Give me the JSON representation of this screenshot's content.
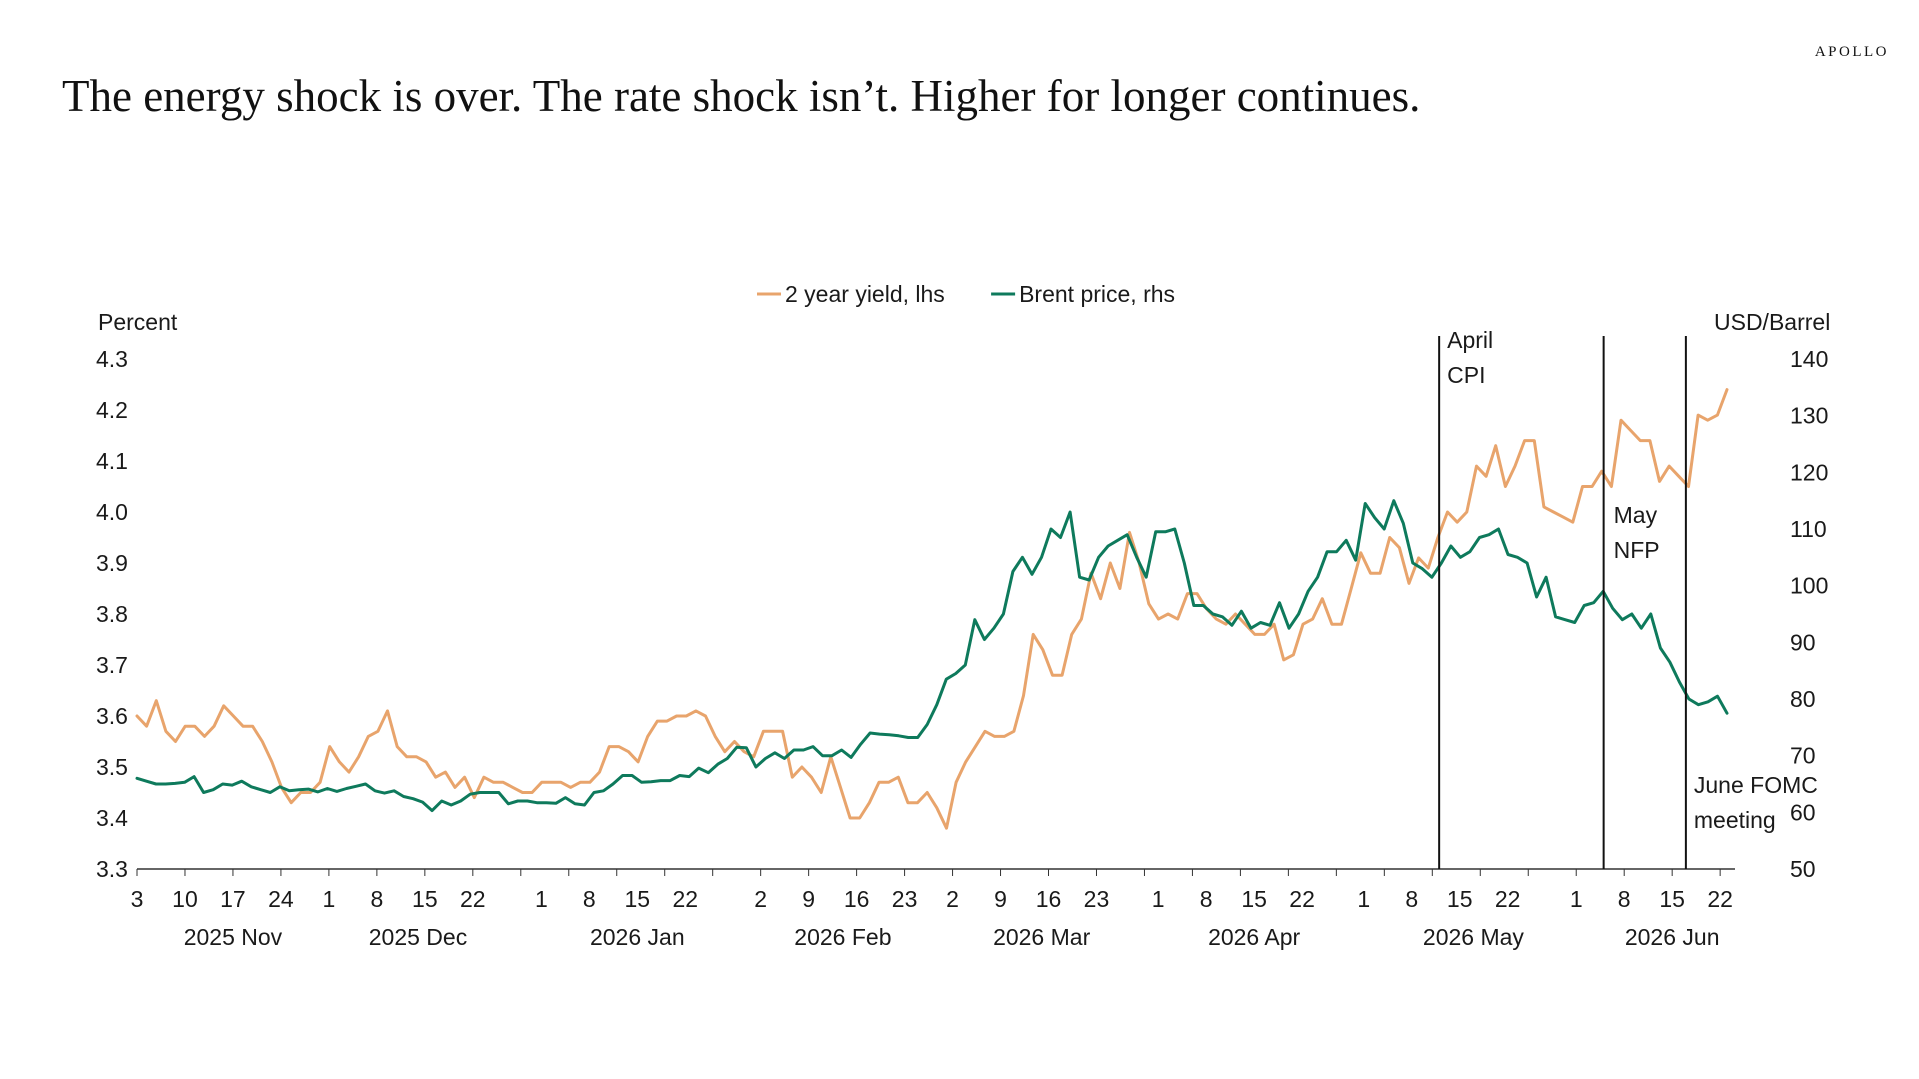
{
  "brand": "APOLLO",
  "title": "The energy shock is over. The rate shock isn’t. Higher for longer continues.",
  "chart_data": {
    "type": "line",
    "x_labels": {
      "days": [
        "3",
        "10",
        "17",
        "24",
        "1",
        "8",
        "15",
        "22",
        "1",
        "8",
        "15",
        "22",
        "2",
        "9",
        "16",
        "23",
        "2",
        "9",
        "16",
        "23",
        "1",
        "8",
        "15",
        "22",
        "1",
        "8",
        "15",
        "22",
        "1",
        "8",
        "15",
        "22"
      ],
      "months": [
        "2025 Nov",
        "2025 Dec",
        "2026 Jan",
        "2026 Feb",
        "2026 Mar",
        "2026 Apr",
        "2026 May",
        "2026 Jun"
      ]
    },
    "x_range": [
      "2025-11-03",
      "2026-06-23"
    ],
    "left_axis": {
      "label": "Percent",
      "ticks": [
        "3.3",
        "3.4",
        "3.5",
        "3.6",
        "3.7",
        "3.8",
        "3.9",
        "4.0",
        "4.1",
        "4.2",
        "4.3"
      ],
      "range": [
        3.3,
        4.3
      ]
    },
    "right_axis": {
      "label": "USD/Barrel",
      "ticks": [
        "50",
        "60",
        "70",
        "80",
        "90",
        "100",
        "110",
        "120",
        "130",
        "140"
      ],
      "range": [
        50,
        140
      ]
    },
    "legend": {
      "position": "top-center"
    },
    "series": [
      {
        "name": "2 year yield, lhs",
        "axis": "left",
        "color": "#E8A46C",
        "values": [
          3.6,
          3.58,
          3.63,
          3.57,
          3.55,
          3.58,
          3.58,
          3.56,
          3.58,
          3.62,
          3.6,
          3.58,
          3.58,
          3.55,
          3.51,
          3.46,
          3.43,
          3.45,
          3.45,
          3.47,
          3.54,
          3.51,
          3.49,
          3.52,
          3.56,
          3.57,
          3.61,
          3.54,
          3.52,
          3.52,
          3.51,
          3.48,
          3.49,
          3.46,
          3.48,
          3.44,
          3.48,
          3.47,
          3.47,
          3.46,
          3.45,
          3.45,
          3.47,
          3.47,
          3.47,
          3.46,
          3.47,
          3.47,
          3.49,
          3.54,
          3.54,
          3.53,
          3.51,
          3.56,
          3.59,
          3.59,
          3.6,
          3.6,
          3.61,
          3.6,
          3.56,
          3.53,
          3.55,
          3.53,
          3.52,
          3.57,
          3.57,
          3.57,
          3.48,
          3.5,
          3.48,
          3.45,
          3.52,
          3.46,
          3.4,
          3.4,
          3.43,
          3.47,
          3.47,
          3.48,
          3.43,
          3.43,
          3.45,
          3.42,
          3.38,
          3.47,
          3.51,
          3.54,
          3.57,
          3.56,
          3.56,
          3.57,
          3.64,
          3.76,
          3.73,
          3.68,
          3.68,
          3.76,
          3.79,
          3.88,
          3.83,
          3.9,
          3.85,
          3.96,
          3.9,
          3.82,
          3.79,
          3.8,
          3.79,
          3.84,
          3.84,
          3.81,
          3.79,
          3.78,
          3.8,
          3.78,
          3.76,
          3.76,
          3.78,
          3.71,
          3.72,
          3.78,
          3.79,
          3.83,
          3.78,
          3.78,
          3.85,
          3.92,
          3.88,
          3.88,
          3.95,
          3.93,
          3.86,
          3.91,
          3.89,
          3.95,
          4.0,
          3.98,
          4.0,
          4.09,
          4.07,
          4.13,
          4.05,
          4.09,
          4.14,
          4.14,
          4.01,
          4.0,
          3.99,
          3.98,
          4.05,
          4.05,
          4.08,
          4.05,
          4.18,
          4.16,
          4.14,
          4.14,
          4.06,
          4.09,
          4.07,
          4.05,
          4.19,
          4.18,
          4.19,
          4.24
        ]
      },
      {
        "name": "Brent price, rhs",
        "axis": "right",
        "color": "#0E7A5C",
        "values": [
          66.0,
          65.5,
          65.0,
          65.0,
          65.1,
          65.3,
          66.3,
          63.5,
          64.0,
          65.0,
          64.8,
          65.5,
          64.5,
          64.0,
          63.5,
          64.5,
          63.8,
          64.0,
          64.1,
          63.6,
          64.2,
          63.7,
          64.2,
          64.6,
          65.0,
          63.8,
          63.4,
          63.8,
          62.8,
          62.4,
          61.8,
          60.3,
          62.0,
          61.3,
          62.0,
          63.2,
          63.5,
          63.5,
          63.5,
          61.5,
          62.0,
          62.0,
          61.7,
          61.7,
          61.6,
          62.6,
          61.5,
          61.3,
          63.5,
          63.8,
          65.0,
          66.5,
          66.5,
          65.3,
          65.4,
          65.6,
          65.6,
          66.5,
          66.3,
          67.8,
          67.0,
          68.5,
          69.5,
          71.5,
          71.4,
          68.0,
          69.5,
          70.5,
          69.5,
          71.0,
          71.0,
          71.6,
          70.0,
          70.0,
          71.0,
          69.7,
          72.0,
          74.0,
          73.8,
          73.7,
          73.5,
          73.2,
          73.2,
          75.5,
          79.0,
          83.5,
          84.5,
          86.0,
          94.0,
          90.5,
          92.5,
          95.0,
          102.5,
          105.0,
          102.0,
          105.0,
          110.0,
          108.5,
          113.0,
          101.5,
          101.0,
          105.0,
          107.0,
          108.0,
          109.0,
          105.0,
          101.5,
          109.5,
          109.5,
          110.0,
          104.0,
          96.5,
          96.5,
          95.0,
          94.5,
          93.0,
          95.5,
          92.5,
          93.5,
          93.0,
          97.0,
          92.5,
          95.0,
          99.0,
          101.5,
          106.0,
          106.0,
          108.0,
          104.5,
          114.5,
          112.0,
          110.0,
          115.0,
          111.0,
          104.0,
          103.0,
          101.5,
          104.0,
          107.0,
          105.0,
          106.0,
          108.5,
          109.0,
          110.0,
          105.5,
          105.0,
          104.0,
          98.0,
          101.5,
          94.5,
          94.0,
          93.5,
          96.5,
          97.0,
          99.0,
          96.0,
          94.0,
          95.0,
          92.5,
          95.0,
          89.0,
          86.5,
          83.0,
          80.0,
          79.0,
          79.5,
          80.5,
          77.5
        ]
      }
    ],
    "annotations": [
      {
        "date": "2026-05-12",
        "text": [
          "April",
          "CPI"
        ]
      },
      {
        "date": "2026-06-05",
        "text": [
          "May",
          "NFP"
        ]
      },
      {
        "date": "2026-06-17",
        "text": [
          "June FOMC",
          "meeting"
        ]
      }
    ]
  }
}
